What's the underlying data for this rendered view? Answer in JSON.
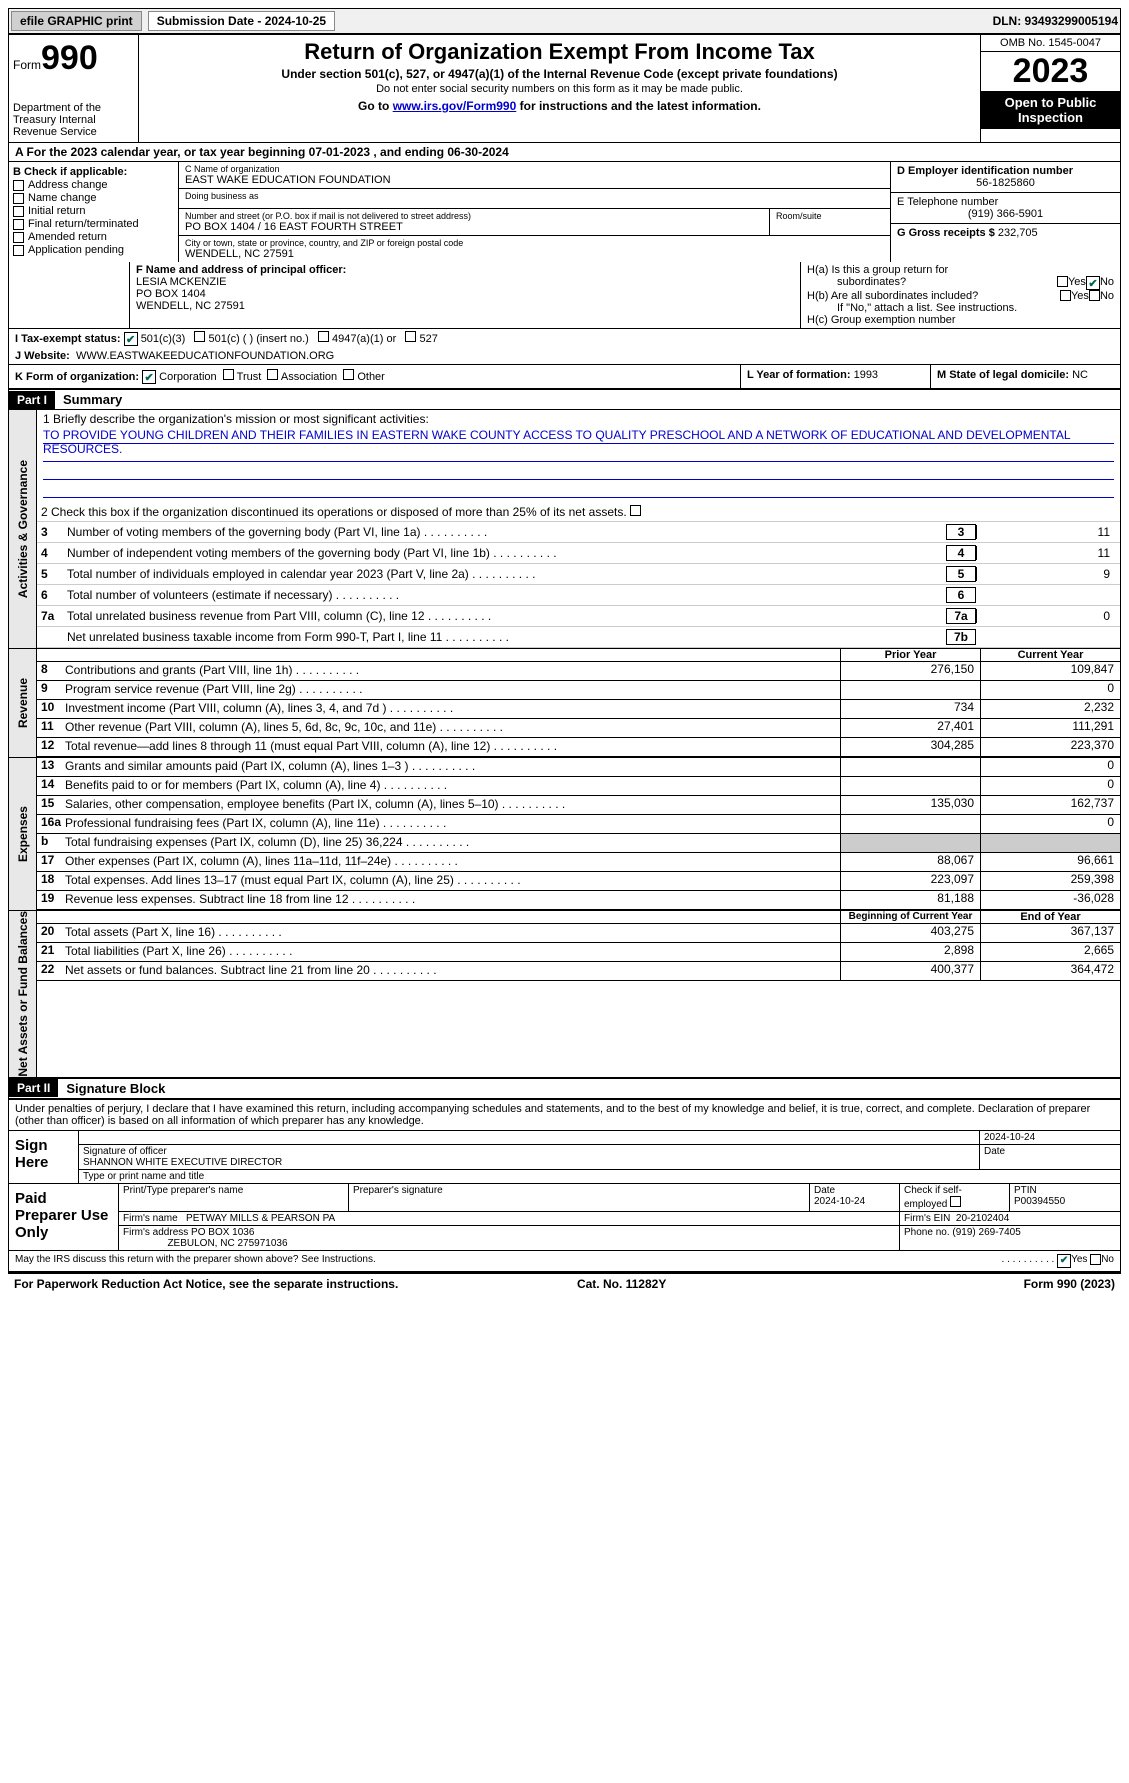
{
  "topbar": {
    "efile": "efile GRAPHIC print",
    "submission_label": "Submission Date - 2024-10-25",
    "dln_label": "DLN: 93493299005194"
  },
  "header": {
    "form_word": "Form",
    "form_num": "990",
    "title": "Return of Organization Exempt From Income Tax",
    "sub1": "Under section 501(c), 527, or 4947(a)(1) of the Internal Revenue Code (except private foundations)",
    "sub2": "Do not enter social security numbers on this form as it may be made public.",
    "sub3_pre": "Go to ",
    "sub3_link": "www.irs.gov/Form990",
    "sub3_post": " for instructions and the latest information.",
    "dept": "Department of the Treasury Internal Revenue Service",
    "omb": "OMB No. 1545-0047",
    "year": "2023",
    "otp": "Open to Public Inspection"
  },
  "row_a": "A For the 2023 calendar year, or tax year beginning 07-01-2023   , and ending 06-30-2024",
  "col_b": {
    "hdr": "B Check if applicable:",
    "items": [
      "Address change",
      "Name change",
      "Initial return",
      "Final return/terminated",
      "Amended return",
      "Application pending"
    ]
  },
  "col_c": {
    "name_label": "C Name of organization",
    "name": "EAST WAKE EDUCATION FOUNDATION",
    "dba_label": "Doing business as",
    "dba": "",
    "street_label": "Number and street (or P.O. box if mail is not delivered to street address)",
    "street": "PO BOX 1404 / 16 EAST FOURTH STREET",
    "room_label": "Room/suite",
    "city_label": "City or town, state or province, country, and ZIP or foreign postal code",
    "city": "WENDELL, NC  27591"
  },
  "col_d": {
    "ein_label": "D Employer identification number",
    "ein": "56-1825860",
    "phone_label": "E Telephone number",
    "phone": "(919) 366-5901",
    "gross_label": "G Gross receipts $",
    "gross": "232,705"
  },
  "row_f": {
    "label": "F  Name and address of principal officer:",
    "name": "LESIA MCKENZIE",
    "addr1": "PO BOX 1404",
    "addr2": "WENDELL, NC  27591"
  },
  "row_h": {
    "ha": "H(a)  Is this a group return for",
    "ha2": "subordinates?",
    "hb": "H(b)  Are all subordinates included?",
    "hb_note": "If \"No,\" attach a list. See instructions.",
    "hc": "H(c)  Group exemption number",
    "yes": "Yes",
    "no": "No"
  },
  "row_i": {
    "label": "I   Tax-exempt status:",
    "o1": "501(c)(3)",
    "o2": "501(c) (  ) (insert no.)",
    "o3": "4947(a)(1) or",
    "o4": "527"
  },
  "row_j": {
    "label": "J   Website:",
    "value": "WWW.EASTWAKEEDUCATIONFOUNDATION.ORG"
  },
  "row_k": {
    "label": "K Form of organization:",
    "opts": [
      "Corporation",
      "Trust",
      "Association",
      "Other"
    ],
    "l_label": "L Year of formation:",
    "l_val": "1993",
    "m_label": "M State of legal domicile:",
    "m_val": "NC"
  },
  "parts": {
    "p1": "Part I",
    "p1_title": "Summary",
    "p2": "Part II",
    "p2_title": "Signature Block"
  },
  "summary": {
    "q1_label": "1   Briefly describe the organization's mission or most significant activities:",
    "q1_text": "TO PROVIDE YOUNG CHILDREN AND THEIR FAMILIES IN EASTERN WAKE COUNTY ACCESS TO QUALITY PRESCHOOL AND A NETWORK OF EDUCATIONAL AND DEVELOPMENTAL RESOURCES.",
    "q2": "2   Check this box         if the organization discontinued its operations or disposed of more than 25% of its net assets.",
    "lines": [
      {
        "n": "3",
        "d": "Number of voting members of the governing body (Part VI, line 1a)",
        "box": "3",
        "v": "11"
      },
      {
        "n": "4",
        "d": "Number of independent voting members of the governing body (Part VI, line 1b)",
        "box": "4",
        "v": "11"
      },
      {
        "n": "5",
        "d": "Total number of individuals employed in calendar year 2023 (Part V, line 2a)",
        "box": "5",
        "v": "9"
      },
      {
        "n": "6",
        "d": "Total number of volunteers (estimate if necessary)",
        "box": "6",
        "v": ""
      },
      {
        "n": "7a",
        "d": "Total unrelated business revenue from Part VIII, column (C), line 12",
        "box": "7a",
        "v": "0"
      },
      {
        "n": "",
        "d": "Net unrelated business taxable income from Form 990-T, Part I, line 11",
        "box": "7b",
        "v": ""
      }
    ],
    "col_hdrs": {
      "prior": "Prior Year",
      "current": "Current Year",
      "begin": "Beginning of Current Year",
      "end": "End of Year"
    },
    "revenue": [
      {
        "n": "8",
        "d": "Contributions and grants (Part VIII, line 1h)",
        "p": "276,150",
        "c": "109,847"
      },
      {
        "n": "9",
        "d": "Program service revenue (Part VIII, line 2g)",
        "p": "",
        "c": "0"
      },
      {
        "n": "10",
        "d": "Investment income (Part VIII, column (A), lines 3, 4, and 7d )",
        "p": "734",
        "c": "2,232"
      },
      {
        "n": "11",
        "d": "Other revenue (Part VIII, column (A), lines 5, 6d, 8c, 9c, 10c, and 11e)",
        "p": "27,401",
        "c": "111,291"
      },
      {
        "n": "12",
        "d": "Total revenue—add lines 8 through 11 (must equal Part VIII, column (A), line 12)",
        "p": "304,285",
        "c": "223,370"
      }
    ],
    "expenses": [
      {
        "n": "13",
        "d": "Grants and similar amounts paid (Part IX, column (A), lines 1–3 )",
        "p": "",
        "c": "0"
      },
      {
        "n": "14",
        "d": "Benefits paid to or for members (Part IX, column (A), line 4)",
        "p": "",
        "c": "0"
      },
      {
        "n": "15",
        "d": "Salaries, other compensation, employee benefits (Part IX, column (A), lines 5–10)",
        "p": "135,030",
        "c": "162,737"
      },
      {
        "n": "16a",
        "d": "Professional fundraising fees (Part IX, column (A), line 11e)",
        "p": "",
        "c": "0"
      },
      {
        "n": "b",
        "d": "Total fundraising expenses (Part IX, column (D), line 25) 36,224",
        "p": "GREY",
        "c": "GREY"
      },
      {
        "n": "17",
        "d": "Other expenses (Part IX, column (A), lines 11a–11d, 11f–24e)",
        "p": "88,067",
        "c": "96,661"
      },
      {
        "n": "18",
        "d": "Total expenses. Add lines 13–17 (must equal Part IX, column (A), line 25)",
        "p": "223,097",
        "c": "259,398"
      },
      {
        "n": "19",
        "d": "Revenue less expenses. Subtract line 18 from line 12",
        "p": "81,188",
        "c": "-36,028"
      }
    ],
    "netassets": [
      {
        "n": "20",
        "d": "Total assets (Part X, line 16)",
        "p": "403,275",
        "c": "367,137"
      },
      {
        "n": "21",
        "d": "Total liabilities (Part X, line 26)",
        "p": "2,898",
        "c": "2,665"
      },
      {
        "n": "22",
        "d": "Net assets or fund balances. Subtract line 21 from line 20",
        "p": "400,377",
        "c": "364,472"
      }
    ],
    "vtabs": {
      "ag": "Activities & Governance",
      "rev": "Revenue",
      "exp": "Expenses",
      "na": "Net Assets or Fund Balances"
    }
  },
  "sig": {
    "decl": "Under penalties of perjury, I declare that I have examined this return, including accompanying schedules and statements, and to the best of my knowledge and belief, it is true, correct, and complete. Declaration of preparer (other than officer) is based on all information of which preparer has any knowledge.",
    "sign_here": "Sign Here",
    "sig_label": "Signature of officer",
    "officer": "SHANNON WHITE  EXECUTIVE DIRECTOR",
    "type_label": "Type or print name and title",
    "date": "2024-10-24",
    "date_label": "Date",
    "paid": "Paid Preparer Use Only",
    "prep_name_label": "Print/Type preparer's name",
    "prep_sig_label": "Preparer's signature",
    "prep_date": "2024-10-24",
    "check_label": "Check         if self-employed",
    "ptin_label": "PTIN",
    "ptin": "P00394550",
    "firm_name_label": "Firm's name",
    "firm_name": "PETWAY MILLS & PEARSON PA",
    "firm_ein_label": "Firm's EIN",
    "firm_ein": "20-2102404",
    "firm_addr_label": "Firm's address",
    "firm_addr": "PO BOX 1036",
    "firm_addr2": "ZEBULON, NC  275971036",
    "phone_label": "Phone no.",
    "phone": "(919) 269-7405",
    "discuss": "May the IRS discuss this return with the preparer shown above? See Instructions."
  },
  "footer": {
    "l": "For Paperwork Reduction Act Notice, see the separate instructions.",
    "m": "Cat. No. 11282Y",
    "r": "Form 990 (2023)"
  }
}
